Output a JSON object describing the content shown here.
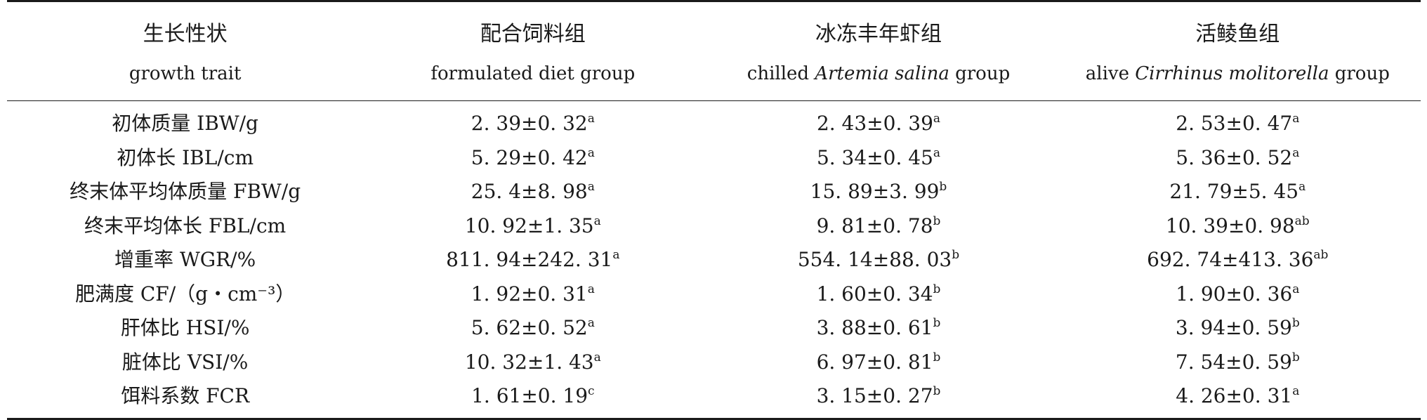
{
  "table": {
    "headers": [
      {
        "zh": "生长性状",
        "en_pre": "growth trait",
        "en_ital": "",
        "en_post": ""
      },
      {
        "zh": "配合饲料组",
        "en_pre": "formulated diet group",
        "en_ital": "",
        "en_post": ""
      },
      {
        "zh": "冰冻丰年虾组",
        "en_pre": "chilled ",
        "en_ital": "Artemia salina",
        "en_post": " group"
      },
      {
        "zh": "活鲮鱼组",
        "en_pre": "alive ",
        "en_ital": "Cirrhinus molitorella",
        "en_post": " group"
      }
    ],
    "rows": [
      {
        "trait": "初体质量 IBW/g",
        "cells": [
          {
            "v": "2. 39±0. 32",
            "s": "a"
          },
          {
            "v": "2. 43±0. 39",
            "s": "a"
          },
          {
            "v": "2. 53±0. 47",
            "s": "a"
          }
        ]
      },
      {
        "trait": "初体长 IBL/cm",
        "cells": [
          {
            "v": "5. 29±0. 42",
            "s": "a"
          },
          {
            "v": "5. 34±0. 45",
            "s": "a"
          },
          {
            "v": "5. 36±0. 52",
            "s": "a"
          }
        ]
      },
      {
        "trait": "终末体平均体质量 FBW/g",
        "cells": [
          {
            "v": "25. 4±8. 98",
            "s": "a"
          },
          {
            "v": "15. 89±3. 99",
            "s": "b"
          },
          {
            "v": "21. 79±5. 45",
            "s": "a"
          }
        ]
      },
      {
        "trait": "终末平均体长 FBL/cm",
        "cells": [
          {
            "v": "10. 92±1. 35",
            "s": "a"
          },
          {
            "v": "9. 81±0. 78",
            "s": "b"
          },
          {
            "v": "10. 39±0. 98",
            "s": "ab"
          }
        ]
      },
      {
        "trait": "增重率 WGR/%",
        "cells": [
          {
            "v": "811. 94±242. 31",
            "s": "a"
          },
          {
            "v": "554. 14±88. 03",
            "s": "b"
          },
          {
            "v": "692. 74±413. 36",
            "s": "ab"
          }
        ]
      },
      {
        "trait": "肥满度 CF/（g・cm⁻³）",
        "cells": [
          {
            "v": "1. 92±0. 31",
            "s": "a"
          },
          {
            "v": "1. 60±0. 34",
            "s": "b"
          },
          {
            "v": "1. 90±0. 36",
            "s": "a"
          }
        ]
      },
      {
        "trait": "肝体比 HSI/%",
        "cells": [
          {
            "v": "5. 62±0. 52",
            "s": "a"
          },
          {
            "v": "3. 88±0. 61",
            "s": "b"
          },
          {
            "v": "3. 94±0. 59",
            "s": "b"
          }
        ]
      },
      {
        "trait": "脏体比 VSI/%",
        "cells": [
          {
            "v": "10. 32±1. 43",
            "s": "a"
          },
          {
            "v": "6. 97±0. 81",
            "s": "b"
          },
          {
            "v": "7. 54±0. 59",
            "s": "b"
          }
        ]
      },
      {
        "trait": "饵料系数 FCR",
        "cells": [
          {
            "v": "1. 61±0. 19",
            "s": "c"
          },
          {
            "v": "3. 15±0. 27",
            "s": "b"
          },
          {
            "v": "4. 26±0. 31",
            "s": "a"
          }
        ]
      }
    ]
  }
}
